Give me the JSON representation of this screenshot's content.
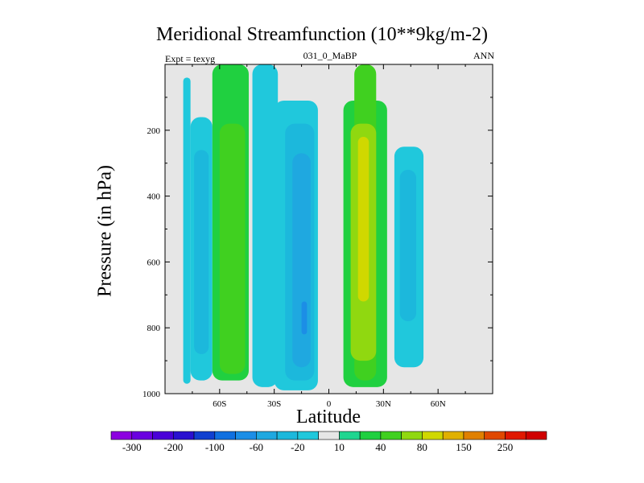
{
  "header": {
    "title": "Meridional Streamfunction (10**9kg/m-2)",
    "expt": "Expt = texyg",
    "case": "031_0_MaBP",
    "season": "ANN"
  },
  "chart_data": {
    "type": "heatmap",
    "title": "Meridional Streamfunction (10**9kg/m-2)",
    "xlabel": "Latitude",
    "ylabel": "Pressure (in hPa)",
    "xlim": [
      -90,
      90
    ],
    "ylim": [
      1000,
      0
    ],
    "x_ticks": [
      -60,
      -30,
      0,
      30,
      60
    ],
    "x_tick_labels": [
      "60S",
      "30S",
      "0",
      "30N",
      "60N"
    ],
    "y_ticks": [
      200,
      400,
      600,
      800,
      1000
    ],
    "y_tick_labels": [
      "200",
      "400",
      "600",
      "800",
      "1000"
    ],
    "colorbar": {
      "levels": [
        -300,
        -250,
        -200,
        -150,
        -100,
        -80,
        -60,
        -40,
        -20,
        -10,
        10,
        20,
        40,
        60,
        80,
        100,
        150,
        200,
        250,
        300
      ],
      "labels": [
        "-300",
        "-200",
        "-100",
        "-60",
        "-20",
        "10",
        "40",
        "80",
        "150",
        "250"
      ],
      "colors": [
        "#8c00e0",
        "#6a00e0",
        "#4a00d8",
        "#2a10d0",
        "#1040d0",
        "#1070e0",
        "#1c8ee6",
        "#1fa8e0",
        "#1cb8dc",
        "#20c8dc",
        "#e6e6e6",
        "#20d690",
        "#20d040",
        "#40d020",
        "#90d810",
        "#d0d800",
        "#e0b000",
        "#e08000",
        "#e04800",
        "#e01800",
        "#d00000"
      ]
    },
    "cells": [
      {
        "x": [
          -80,
          -76
        ],
        "y": [
          970,
          40
        ],
        "level": -20
      },
      {
        "x": [
          -76,
          -64
        ],
        "y": [
          960,
          160
        ],
        "level": -20
      },
      {
        "x": [
          -74,
          -66
        ],
        "y": [
          880,
          260
        ],
        "level": -40
      },
      {
        "x": [
          -64,
          -44
        ],
        "y": [
          960,
          0
        ],
        "level": 20
      },
      {
        "x": [
          -60,
          -46
        ],
        "y": [
          940,
          180
        ],
        "level": 40
      },
      {
        "x": [
          -42,
          -28
        ],
        "y": [
          980,
          0
        ],
        "level": -20
      },
      {
        "x": [
          -30,
          -6
        ],
        "y": [
          990,
          110
        ],
        "level": -20
      },
      {
        "x": [
          -24,
          -8
        ],
        "y": [
          960,
          180
        ],
        "level": -40
      },
      {
        "x": [
          -20,
          -10
        ],
        "y": [
          920,
          270
        ],
        "level": -60
      },
      {
        "x": [
          -15,
          -12
        ],
        "y": [
          820,
          720
        ],
        "level": -80
      },
      {
        "x": [
          -4,
          4
        ],
        "y": [
          1000,
          0
        ],
        "level": -10
      },
      {
        "x": [
          8,
          32
        ],
        "y": [
          980,
          110
        ],
        "level": 20
      },
      {
        "x": [
          14,
          26
        ],
        "y": [
          960,
          0
        ],
        "level": 40
      },
      {
        "x": [
          12,
          26
        ],
        "y": [
          900,
          180
        ],
        "level": 60
      },
      {
        "x": [
          16,
          22
        ],
        "y": [
          720,
          220
        ],
        "level": 80
      },
      {
        "x": [
          36,
          52
        ],
        "y": [
          920,
          250
        ],
        "level": -20
      },
      {
        "x": [
          39,
          48
        ],
        "y": [
          780,
          320
        ],
        "level": -40
      }
    ]
  }
}
